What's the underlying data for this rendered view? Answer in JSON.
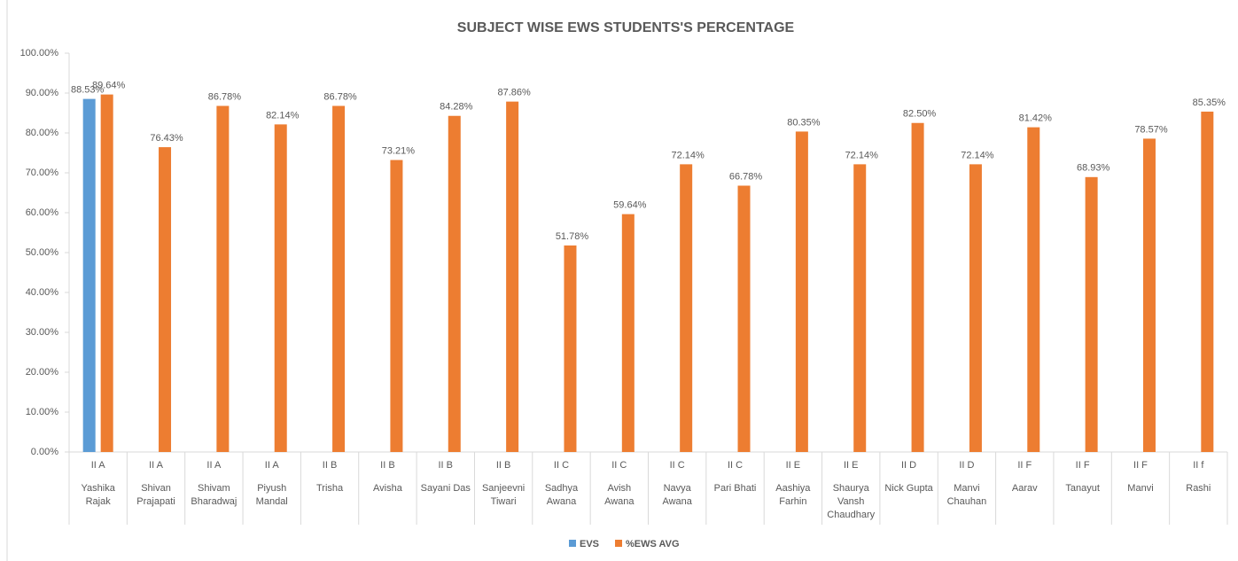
{
  "chart_data": {
    "type": "bar",
    "title": "SUBJECT WISE EWS STUDENTS'S PERCENTAGE",
    "groups": [
      "II A",
      "II A",
      "II A",
      "II A",
      "II B",
      "II B",
      "II B",
      "II B",
      "II C",
      "II C",
      "II C",
      "II C",
      "II E",
      "II E",
      "II D",
      "II D",
      "II F",
      "II F",
      "II F",
      "II f"
    ],
    "categories": [
      "Yashika Rajak",
      "Shivan Prajapati",
      "Shivam Bharadwaj",
      "Piyush Mandal",
      "Trisha",
      "Avisha",
      "Sayani Das",
      "Sanjeevni Tiwari",
      "Sadhya Awana",
      "Avish Awana",
      "Navya Awana",
      "Pari Bhati",
      "Aashiya Farhin",
      "Shaurya Vansh Chaudhary",
      "Nick Gupta",
      "Manvi Chauhan",
      "Aarav",
      "Tanayut",
      "Manvi",
      "Rashi"
    ],
    "series": [
      {
        "name": "EVS",
        "color": "#5b9bd5",
        "values": [
          88.53,
          null,
          null,
          null,
          null,
          null,
          null,
          null,
          null,
          null,
          null,
          null,
          null,
          null,
          null,
          null,
          null,
          null,
          null,
          null
        ],
        "value_labels": [
          "88.53%",
          null,
          null,
          null,
          null,
          null,
          null,
          null,
          null,
          null,
          null,
          null,
          null,
          null,
          null,
          null,
          null,
          null,
          null,
          null
        ]
      },
      {
        "name": "%EWS AVG",
        "color": "#ed7d31",
        "values": [
          89.64,
          76.43,
          86.78,
          82.14,
          86.78,
          73.21,
          84.28,
          87.86,
          51.78,
          59.64,
          72.14,
          66.78,
          80.35,
          72.14,
          82.5,
          72.14,
          81.42,
          68.93,
          78.57,
          85.35
        ],
        "value_labels": [
          "89.64%",
          "76.43%",
          "86.78%",
          "82.14%",
          "86.78%",
          "73.21%",
          "84.28%",
          "87.86%",
          "51.78%",
          "59.64%",
          "72.14%",
          "66.78%",
          "80.35%",
          "72.14%",
          "82.50%",
          "72.14%",
          "81.42%",
          "68.93%",
          "78.57%",
          "85.35%"
        ]
      }
    ],
    "ylim": [
      0,
      100
    ],
    "yticks": [
      {
        "value": 0,
        "label": "0.00%"
      },
      {
        "value": 10,
        "label": "10.00%"
      },
      {
        "value": 20,
        "label": "20.00%"
      },
      {
        "value": 30,
        "label": "30.00%"
      },
      {
        "value": 40,
        "label": "40.00%"
      },
      {
        "value": 50,
        "label": "50.00%"
      },
      {
        "value": 60,
        "label": "60.00%"
      },
      {
        "value": 70,
        "label": "70.00%"
      },
      {
        "value": 80,
        "label": "80.00%"
      },
      {
        "value": 90,
        "label": "90.00%"
      },
      {
        "value": 100,
        "label": "100.00%"
      }
    ],
    "grid": false,
    "legend": "bottom"
  }
}
